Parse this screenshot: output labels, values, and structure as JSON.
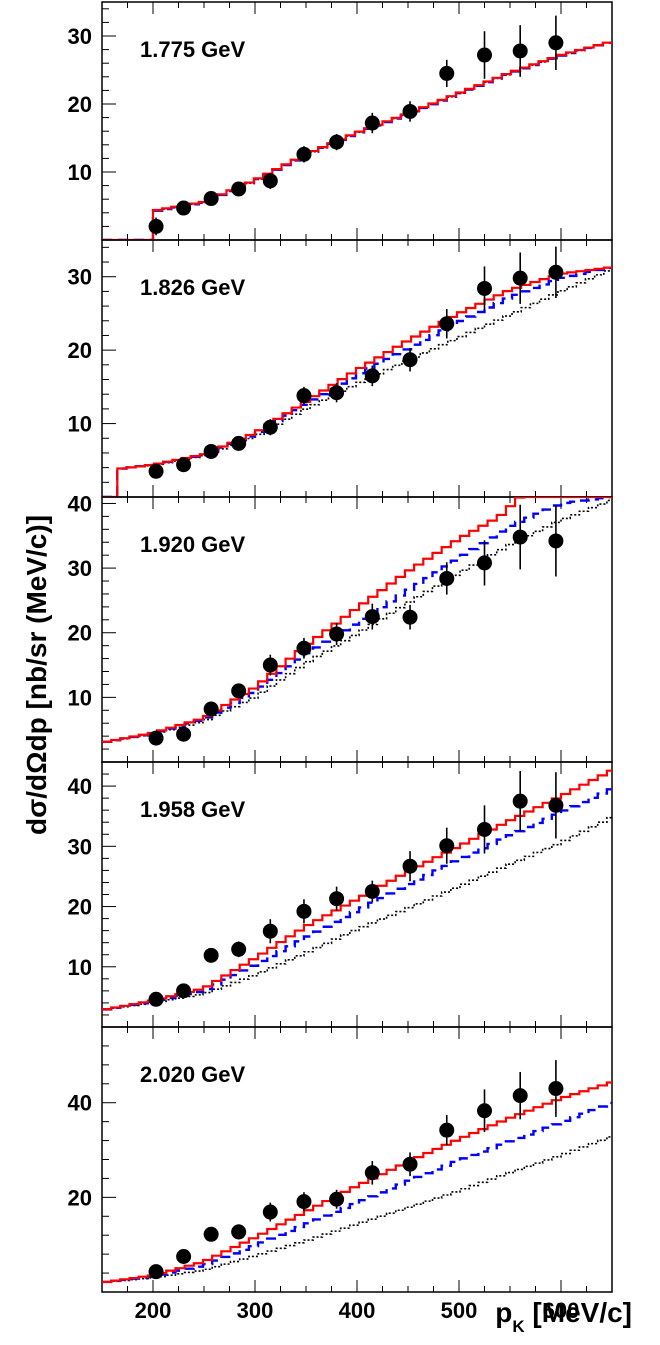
{
  "chart_data": {
    "type": "scatter",
    "xlabel_main": "p",
    "xlabel_sub": "K",
    "xlabel_unit": " [MeV/c]",
    "ylabel": "dσ/dΩdp [nb/sr (MeV/c)]",
    "xlim": [
      150,
      650
    ],
    "xticks": [
      200,
      300,
      400,
      500,
      600
    ],
    "colors": {
      "model_red": "#ff0000",
      "model_blue": "#0000ff",
      "model_black": "#000000",
      "data": "#000000"
    },
    "panels": [
      {
        "energy": "1.775 GeV",
        "ylim": [
          0,
          35
        ],
        "yticks": [
          10,
          20,
          30
        ],
        "threshold": 200,
        "points": [
          {
            "x": 203,
            "y": 2.0,
            "err": 1.3
          },
          {
            "x": 230,
            "y": 4.7,
            "err": 1.0
          },
          {
            "x": 257,
            "y": 6.1,
            "err": 1.0
          },
          {
            "x": 284,
            "y": 7.5,
            "err": 1.0
          },
          {
            "x": 315,
            "y": 8.7,
            "err": 1.2
          },
          {
            "x": 348,
            "y": 12.6,
            "err": 1.2
          },
          {
            "x": 380,
            "y": 14.4,
            "err": 1.2
          },
          {
            "x": 415,
            "y": 17.2,
            "err": 1.5
          },
          {
            "x": 452,
            "y": 18.9,
            "err": 1.5
          },
          {
            "x": 488,
            "y": 24.5,
            "err": 2.0
          },
          {
            "x": 525,
            "y": 27.2,
            "err": 3.5
          },
          {
            "x": 560,
            "y": 27.8,
            "err": 3.8
          },
          {
            "x": 595,
            "y": 29.0,
            "err": 4.0
          }
        ],
        "curves": {
          "red": [
            [
              200,
              4.3
            ],
            [
              250,
              5.6
            ],
            [
              300,
              8.8
            ],
            [
              350,
              12.6
            ],
            [
              400,
              15.8
            ],
            [
              450,
              18.6
            ],
            [
              500,
              21.6
            ],
            [
              550,
              24.6
            ],
            [
              600,
              27.2
            ],
            [
              650,
              29.2
            ]
          ],
          "blue": [
            [
              200,
              4.2
            ],
            [
              250,
              5.5
            ],
            [
              300,
              8.7
            ],
            [
              350,
              12.5
            ],
            [
              400,
              15.7
            ],
            [
              450,
              18.5
            ],
            [
              500,
              21.5
            ],
            [
              550,
              24.5
            ],
            [
              600,
              27.1
            ],
            [
              650,
              29.2
            ]
          ],
          "black": [
            [
              200,
              4.2
            ],
            [
              250,
              5.5
            ],
            [
              300,
              8.7
            ],
            [
              350,
              12.5
            ],
            [
              400,
              15.7
            ],
            [
              450,
              18.5
            ],
            [
              500,
              21.5
            ],
            [
              550,
              24.5
            ],
            [
              600,
              27.1
            ],
            [
              650,
              29.2
            ]
          ]
        }
      },
      {
        "energy": "1.826 GeV",
        "ylim": [
          0,
          35
        ],
        "yticks": [
          10,
          20,
          30
        ],
        "threshold": 165,
        "points": [
          {
            "x": 203,
            "y": 3.5,
            "err": 0.8
          },
          {
            "x": 230,
            "y": 4.4,
            "err": 0.8
          },
          {
            "x": 257,
            "y": 6.2,
            "err": 0.8
          },
          {
            "x": 284,
            "y": 7.3,
            "err": 0.9
          },
          {
            "x": 315,
            "y": 9.5,
            "err": 1.1
          },
          {
            "x": 348,
            "y": 13.8,
            "err": 1.2
          },
          {
            "x": 380,
            "y": 14.2,
            "err": 1.3
          },
          {
            "x": 415,
            "y": 16.5,
            "err": 1.4
          },
          {
            "x": 452,
            "y": 18.7,
            "err": 1.6
          },
          {
            "x": 488,
            "y": 23.6,
            "err": 2.0
          },
          {
            "x": 525,
            "y": 28.4,
            "err": 3.0
          },
          {
            "x": 560,
            "y": 29.8,
            "err": 3.5
          },
          {
            "x": 595,
            "y": 30.6,
            "err": 3.5
          }
        ],
        "curves": {
          "red": [
            [
              165,
              3.8
            ],
            [
              200,
              4.4
            ],
            [
              250,
              5.8
            ],
            [
              300,
              8.7
            ],
            [
              350,
              13.0
            ],
            [
              400,
              17.3
            ],
            [
              450,
              21.3
            ],
            [
              500,
              25.0
            ],
            [
              550,
              28.2
            ],
            [
              600,
              30.4
            ],
            [
              650,
              31.3
            ]
          ],
          "blue": [
            [
              165,
              3.8
            ],
            [
              200,
              4.4
            ],
            [
              250,
              5.7
            ],
            [
              300,
              8.5
            ],
            [
              350,
              12.6
            ],
            [
              400,
              16.6
            ],
            [
              450,
              20.2
            ],
            [
              500,
              23.8
            ],
            [
              550,
              27.2
            ],
            [
              600,
              29.8
            ],
            [
              650,
              31.3
            ]
          ],
          "black": [
            [
              165,
              3.8
            ],
            [
              200,
              4.3
            ],
            [
              250,
              5.6
            ],
            [
              300,
              8.2
            ],
            [
              350,
              12.0
            ],
            [
              400,
              15.4
            ],
            [
              450,
              18.6
            ],
            [
              500,
              21.7
            ],
            [
              550,
              24.8
            ],
            [
              600,
              28.0
            ],
            [
              650,
              31.0
            ]
          ]
        }
      },
      {
        "energy": "1.920 GeV",
        "ylim": [
          0,
          41
        ],
        "yticks": [
          10,
          20,
          30,
          40
        ],
        "threshold": 150,
        "points": [
          {
            "x": 203,
            "y": 3.7,
            "err": 0.7
          },
          {
            "x": 230,
            "y": 4.3,
            "err": 0.8
          },
          {
            "x": 257,
            "y": 8.2,
            "err": 1.0
          },
          {
            "x": 284,
            "y": 11.0,
            "err": 1.1
          },
          {
            "x": 315,
            "y": 15.0,
            "err": 1.6
          },
          {
            "x": 348,
            "y": 17.6,
            "err": 1.6
          },
          {
            "x": 380,
            "y": 19.8,
            "err": 1.7
          },
          {
            "x": 415,
            "y": 22.5,
            "err": 2.0
          },
          {
            "x": 452,
            "y": 22.4,
            "err": 1.9
          },
          {
            "x": 488,
            "y": 28.4,
            "err": 2.5
          },
          {
            "x": 525,
            "y": 30.8,
            "err": 3.5
          },
          {
            "x": 560,
            "y": 34.8,
            "err": 5.0
          },
          {
            "x": 595,
            "y": 34.2,
            "err": 5.5
          }
        ],
        "curves": {
          "red": [
            [
              150,
              3.0
            ],
            [
              200,
              4.5
            ],
            [
              250,
              6.8
            ],
            [
              300,
              11.5
            ],
            [
              350,
              18.0
            ],
            [
              400,
              23.8
            ],
            [
              450,
              29.5
            ],
            [
              500,
              34.5
            ],
            [
              540,
              38.0
            ],
            [
              560,
              41.0
            ],
            [
              600,
              41.0
            ],
            [
              650,
              41.0
            ]
          ],
          "blue": [
            [
              150,
              3.0
            ],
            [
              200,
              4.4
            ],
            [
              250,
              6.6
            ],
            [
              300,
              10.8
            ],
            [
              350,
              16.6
            ],
            [
              400,
              21.5
            ],
            [
              450,
              26.5
            ],
            [
              500,
              31.5
            ],
            [
              550,
              36.5
            ],
            [
              600,
              40.0
            ],
            [
              650,
              41.0
            ]
          ],
          "black": [
            [
              150,
              3.0
            ],
            [
              200,
              4.3
            ],
            [
              250,
              6.3
            ],
            [
              300,
              10.0
            ],
            [
              350,
              15.3
            ],
            [
              400,
              19.8
            ],
            [
              450,
              24.6
            ],
            [
              500,
              29.2
            ],
            [
              550,
              33.6
            ],
            [
              600,
              37.4
            ],
            [
              650,
              40.5
            ]
          ]
        }
      },
      {
        "energy": "1.958 GeV",
        "ylim": [
          0,
          44
        ],
        "yticks": [
          10,
          20,
          30,
          40
        ],
        "threshold": 150,
        "points": [
          {
            "x": 203,
            "y": 4.6,
            "err": 0.8
          },
          {
            "x": 230,
            "y": 6.0,
            "err": 0.9
          },
          {
            "x": 257,
            "y": 11.9,
            "err": 1.1
          },
          {
            "x": 284,
            "y": 12.9,
            "err": 1.3
          },
          {
            "x": 315,
            "y": 15.9,
            "err": 2.0
          },
          {
            "x": 348,
            "y": 19.2,
            "err": 2.0
          },
          {
            "x": 380,
            "y": 21.3,
            "err": 2.0
          },
          {
            "x": 415,
            "y": 22.5,
            "err": 1.8
          },
          {
            "x": 452,
            "y": 26.7,
            "err": 2.5
          },
          {
            "x": 488,
            "y": 30.1,
            "err": 3.0
          },
          {
            "x": 525,
            "y": 32.8,
            "err": 4.0
          },
          {
            "x": 560,
            "y": 37.5,
            "err": 5.0
          },
          {
            "x": 595,
            "y": 36.8,
            "err": 5.5
          }
        ],
        "curves": {
          "red": [
            [
              150,
              2.8
            ],
            [
              200,
              4.4
            ],
            [
              250,
              6.4
            ],
            [
              300,
              11.4
            ],
            [
              350,
              16.7
            ],
            [
              400,
              21.2
            ],
            [
              450,
              25.8
            ],
            [
              500,
              30.0
            ],
            [
              550,
              34.3
            ],
            [
              600,
              38.3
            ],
            [
              650,
              42.6
            ]
          ],
          "blue": [
            [
              150,
              2.8
            ],
            [
              200,
              4.2
            ],
            [
              250,
              6.0
            ],
            [
              300,
              10.3
            ],
            [
              350,
              14.8
            ],
            [
              400,
              19.3
            ],
            [
              450,
              23.6
            ],
            [
              500,
              27.8
            ],
            [
              550,
              31.8
            ],
            [
              600,
              35.6
            ],
            [
              650,
              39.5
            ]
          ],
          "black": [
            [
              150,
              2.8
            ],
            [
              200,
              4.0
            ],
            [
              250,
              5.5
            ],
            [
              300,
              8.6
            ],
            [
              350,
              12.3
            ],
            [
              400,
              16.2
            ],
            [
              450,
              19.7
            ],
            [
              500,
              23.3
            ],
            [
              550,
              27.0
            ],
            [
              600,
              30.6
            ],
            [
              650,
              34.8
            ]
          ]
        }
      },
      {
        "energy": "2.020 GeV",
        "ylim": [
          0,
          56
        ],
        "yticks": [
          20,
          40
        ],
        "threshold": 150,
        "points": [
          {
            "x": 203,
            "y": 4.3,
            "err": 1.0
          },
          {
            "x": 230,
            "y": 7.5,
            "err": 1.2
          },
          {
            "x": 257,
            "y": 12.2,
            "err": 1.4
          },
          {
            "x": 284,
            "y": 12.7,
            "err": 1.6
          },
          {
            "x": 315,
            "y": 16.9,
            "err": 2.0
          },
          {
            "x": 348,
            "y": 19.1,
            "err": 2.0
          },
          {
            "x": 380,
            "y": 19.6,
            "err": 2.0
          },
          {
            "x": 415,
            "y": 25.2,
            "err": 2.5
          },
          {
            "x": 452,
            "y": 27.0,
            "err": 2.5
          },
          {
            "x": 488,
            "y": 34.2,
            "err": 3.2
          },
          {
            "x": 525,
            "y": 38.3,
            "err": 4.5
          },
          {
            "x": 560,
            "y": 41.5,
            "err": 5.0
          },
          {
            "x": 595,
            "y": 43.0,
            "err": 6.0
          }
        ],
        "curves": {
          "red": [
            [
              150,
              2.0
            ],
            [
              200,
              3.5
            ],
            [
              250,
              6.4
            ],
            [
              300,
              11.5
            ],
            [
              350,
              17.0
            ],
            [
              400,
              22.4
            ],
            [
              450,
              27.5
            ],
            [
              500,
              32.3
            ],
            [
              550,
              36.8
            ],
            [
              600,
              40.9
            ],
            [
              650,
              44.3
            ]
          ],
          "blue": [
            [
              150,
              2.0
            ],
            [
              200,
              3.3
            ],
            [
              250,
              5.6
            ],
            [
              300,
              9.8
            ],
            [
              350,
              14.3
            ],
            [
              400,
              18.8
            ],
            [
              450,
              23.4
            ],
            [
              500,
              27.8
            ],
            [
              550,
              31.8
            ],
            [
              600,
              35.8
            ],
            [
              650,
              40.0
            ]
          ],
          "black": [
            [
              150,
              2.0
            ],
            [
              200,
              3.0
            ],
            [
              250,
              4.6
            ],
            [
              300,
              7.6
            ],
            [
              350,
              10.8
            ],
            [
              400,
              14.3
            ],
            [
              450,
              17.8
            ],
            [
              500,
              21.4
            ],
            [
              550,
              25.2
            ],
            [
              600,
              28.9
            ],
            [
              650,
              32.8
            ]
          ]
        }
      }
    ]
  }
}
